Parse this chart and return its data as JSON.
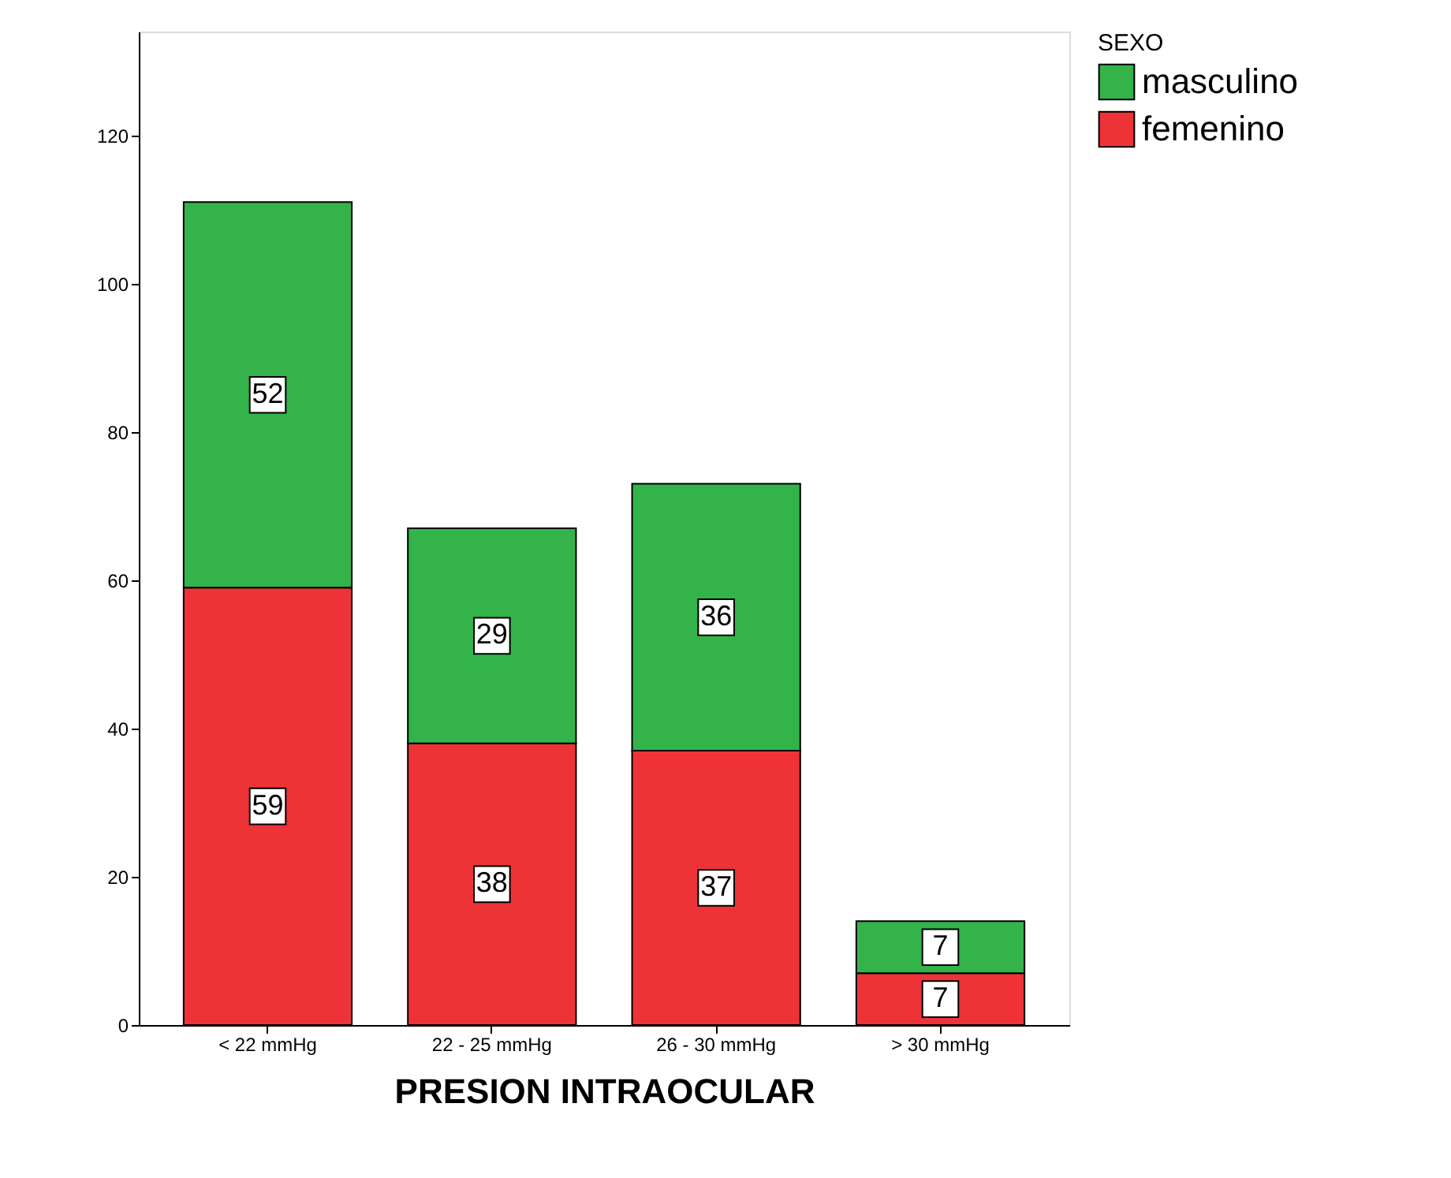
{
  "chart_data": {
    "type": "bar",
    "stacked": true,
    "xlabel": "PRESION INTRAOCULAR",
    "legend_title": "SEXO",
    "legend": "top right",
    "grid": false,
    "data_labels": true,
    "categories": [
      "< 22 mmHg",
      "22 - 25 mmHg",
      "26 - 30 mmHg",
      "> 30 mmHg"
    ],
    "ylim": [
      0,
      134
    ],
    "yticks": [
      0,
      20,
      40,
      60,
      80,
      100,
      120
    ],
    "series": [
      {
        "name": "femenino",
        "color": "#ee3338",
        "values": [
          59,
          38,
          37,
          7
        ]
      },
      {
        "name": "masculino",
        "color": "#33b34a",
        "values": [
          52,
          29,
          36,
          7
        ]
      }
    ]
  }
}
